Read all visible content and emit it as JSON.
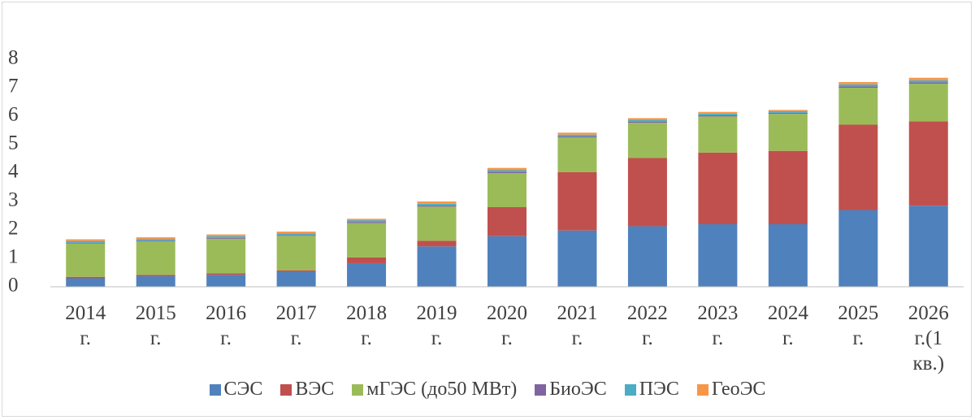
{
  "chart_data": {
    "type": "bar",
    "stacked": true,
    "categories": [
      "2014 г.",
      "2015 г.",
      "2016 г.",
      "2017 г.",
      "2018 г.",
      "2019 г.",
      "2020 г.",
      "2021 г.",
      "2022 г.",
      "2023 г.",
      "2024 г.",
      "2025 г.",
      "2026 г.(1 кв.)"
    ],
    "series": [
      {
        "name": "СЭС",
        "color": "#4f81bd",
        "values": [
          0.3,
          0.37,
          0.42,
          0.53,
          0.83,
          1.42,
          1.78,
          1.98,
          2.13,
          2.2,
          2.2,
          2.7,
          2.85
        ]
      },
      {
        "name": "ВЭС",
        "color": "#c0504d",
        "values": [
          0.05,
          0.05,
          0.05,
          0.05,
          0.2,
          0.2,
          1.02,
          2.05,
          2.4,
          2.52,
          2.58,
          3.0,
          2.97
        ]
      },
      {
        "name": "мГЭС (до50 МВт)",
        "color": "#9bbb59",
        "values": [
          1.17,
          1.17,
          1.22,
          1.21,
          1.21,
          1.2,
          1.2,
          1.22,
          1.24,
          1.27,
          1.3,
          1.3,
          1.32
        ]
      },
      {
        "name": "БиоЭС",
        "color": "#8064a2",
        "values": [
          0.03,
          0.03,
          0.03,
          0.03,
          0.04,
          0.04,
          0.04,
          0.04,
          0.04,
          0.04,
          0.04,
          0.05,
          0.05
        ]
      },
      {
        "name": "ПЭС",
        "color": "#4bacc6",
        "values": [
          0.06,
          0.06,
          0.06,
          0.06,
          0.06,
          0.06,
          0.06,
          0.06,
          0.06,
          0.06,
          0.06,
          0.07,
          0.07
        ]
      },
      {
        "name": "ГеоЭС",
        "color": "#f79646",
        "values": [
          0.06,
          0.06,
          0.06,
          0.06,
          0.05,
          0.08,
          0.08,
          0.07,
          0.06,
          0.06,
          0.04,
          0.08,
          0.09
        ]
      }
    ],
    "ylim": [
      0,
      8
    ],
    "yticks": [
      0,
      1,
      2,
      3,
      4,
      5,
      6,
      7,
      8
    ],
    "grid": false,
    "legend": "bottom"
  }
}
